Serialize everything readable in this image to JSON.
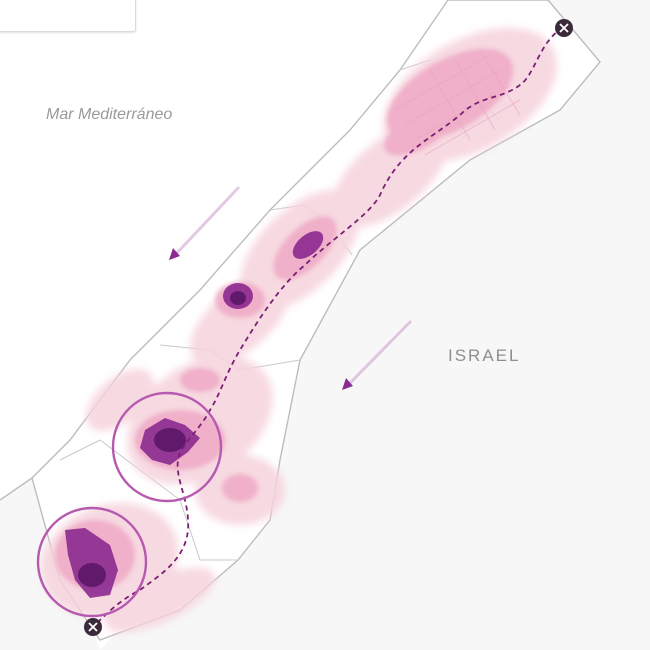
{
  "labels": {
    "sea": "Mar Mediterráneo",
    "country": "ISRAEL"
  },
  "colors": {
    "land": "#f7f7f7",
    "border": "#bdbdbd",
    "density_low": "#f6d2dc",
    "density_mid": "#eea6c3",
    "density_high": "#8b2a8f",
    "density_core": "#5c1766",
    "route": "#7a1f73",
    "marker": "#3b2b3a",
    "circle": "#b65ab0"
  },
  "icons": {
    "route_start": "x-circle-icon",
    "route_end": "x-circle-icon",
    "movement": "arrow-southwest-icon"
  }
}
